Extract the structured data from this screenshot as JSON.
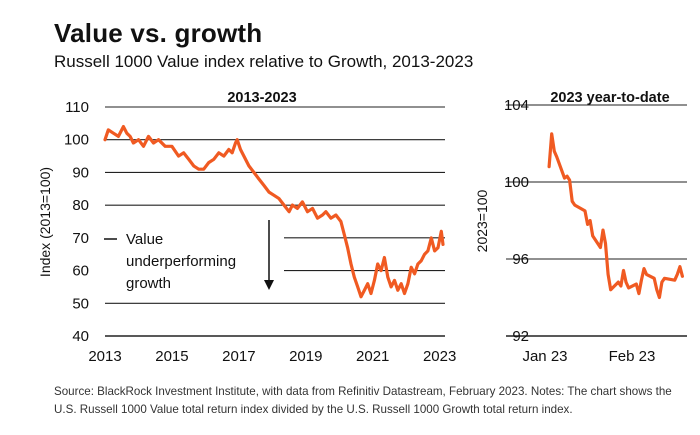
{
  "title": "Value vs. growth",
  "subtitle": "Russell 1000 Value index relative to Growth, 2013-2023",
  "source": "Source: BlackRock Investment Institute, with data from Refinitiv Datastream, February 2023. Notes: The chart shows the U.S. Russell 1000 Value total return index divided by the U.S. Russell 1000 Growth total return index.",
  "annotation": [
    "Value",
    "underperforming",
    "growth"
  ],
  "colors": {
    "line": "#f05a22",
    "grid": "#222222",
    "text": "#111111"
  },
  "chart_data": [
    {
      "type": "line",
      "title": "2013-2023",
      "ylabel": "Index (2013=100)",
      "xlim": [
        2013,
        2023.1
      ],
      "ylim": [
        40,
        110
      ],
      "yticks": [
        40,
        50,
        60,
        70,
        80,
        90,
        100,
        110
      ],
      "xticks": [
        2013,
        2015,
        2017,
        2019,
        2021,
        2023
      ],
      "xtick_labels": [
        "2013",
        "2015",
        "2017",
        "2019",
        "2021",
        "2023"
      ],
      "grid": "horizontal",
      "x": [
        2013.0,
        2013.1,
        2013.25,
        2013.4,
        2013.55,
        2013.65,
        2013.75,
        2013.85,
        2014.0,
        2014.15,
        2014.3,
        2014.45,
        2014.6,
        2014.8,
        2015.0,
        2015.2,
        2015.35,
        2015.5,
        2015.65,
        2015.8,
        2015.95,
        2016.1,
        2016.25,
        2016.4,
        2016.55,
        2016.7,
        2016.8,
        2016.9,
        2016.95,
        2017.05,
        2017.15,
        2017.3,
        2017.45,
        2017.6,
        2017.75,
        2017.9,
        2018.05,
        2018.2,
        2018.35,
        2018.5,
        2018.6,
        2018.75,
        2018.9,
        2019.05,
        2019.2,
        2019.35,
        2019.5,
        2019.6,
        2019.75,
        2019.9,
        2020.05,
        2020.15,
        2020.25,
        2020.35,
        2020.45,
        2020.55,
        2020.65,
        2020.75,
        2020.85,
        2020.95,
        2021.05,
        2021.15,
        2021.25,
        2021.35,
        2021.45,
        2021.55,
        2021.65,
        2021.75,
        2021.85,
        2021.95,
        2022.05,
        2022.15,
        2022.25,
        2022.35,
        2022.45,
        2022.55,
        2022.65,
        2022.75,
        2022.85,
        2022.95,
        2023.05,
        2023.1
      ],
      "y": [
        100,
        103,
        102,
        101,
        104,
        102,
        101,
        99,
        100,
        98,
        101,
        99,
        100,
        98,
        98,
        95,
        96,
        94,
        92,
        91,
        91,
        93,
        94,
        96,
        95,
        97,
        96,
        99,
        100,
        97,
        95,
        92,
        90,
        88,
        86,
        84,
        83,
        82,
        80,
        78,
        80,
        79,
        81,
        78,
        79,
        76,
        77,
        78,
        76,
        77,
        75,
        71,
        67,
        62,
        58,
        55,
        52,
        54,
        56,
        53,
        57,
        62,
        60,
        64,
        58,
        55,
        57,
        54,
        56,
        53,
        56,
        61,
        59,
        62,
        63,
        65,
        66,
        70,
        66,
        67,
        72,
        68
      ]
    },
    {
      "type": "line",
      "title": "2023 year-to-date",
      "ylabel": "2023=100",
      "ylim": [
        92,
        104
      ],
      "yticks": [
        92,
        96,
        100,
        104
      ],
      "xticks": [
        "Jan 23",
        "Feb 23"
      ],
      "grid": "horizontal",
      "x": [
        "2023-01-03",
        "2023-01-04",
        "2023-01-05",
        "2023-01-06",
        "2023-01-09",
        "2023-01-10",
        "2023-01-11",
        "2023-01-12",
        "2023-01-13",
        "2023-01-17",
        "2023-01-18",
        "2023-01-19",
        "2023-01-20",
        "2023-01-23",
        "2023-01-24",
        "2023-01-25",
        "2023-01-26",
        "2023-01-27",
        "2023-01-30",
        "2023-01-31",
        "2023-02-01",
        "2023-02-02",
        "2023-02-03",
        "2023-02-06",
        "2023-02-07",
        "2023-02-08",
        "2023-02-09",
        "2023-02-10",
        "2023-02-13",
        "2023-02-14",
        "2023-02-15",
        "2023-02-16",
        "2023-02-17",
        "2023-02-21",
        "2023-02-22",
        "2023-02-23",
        "2023-02-24"
      ],
      "y": [
        100.8,
        102.5,
        101.6,
        101.3,
        100.2,
        100.3,
        100.1,
        99.0,
        98.8,
        98.5,
        97.8,
        98.0,
        97.2,
        96.6,
        97.5,
        96.8,
        95.2,
        94.4,
        94.8,
        94.6,
        95.4,
        94.8,
        94.5,
        94.7,
        94.2,
        94.9,
        95.5,
        95.2,
        95.0,
        94.4,
        94.0,
        94.8,
        95.0,
        94.9,
        95.2,
        95.6,
        95.1
      ]
    }
  ]
}
